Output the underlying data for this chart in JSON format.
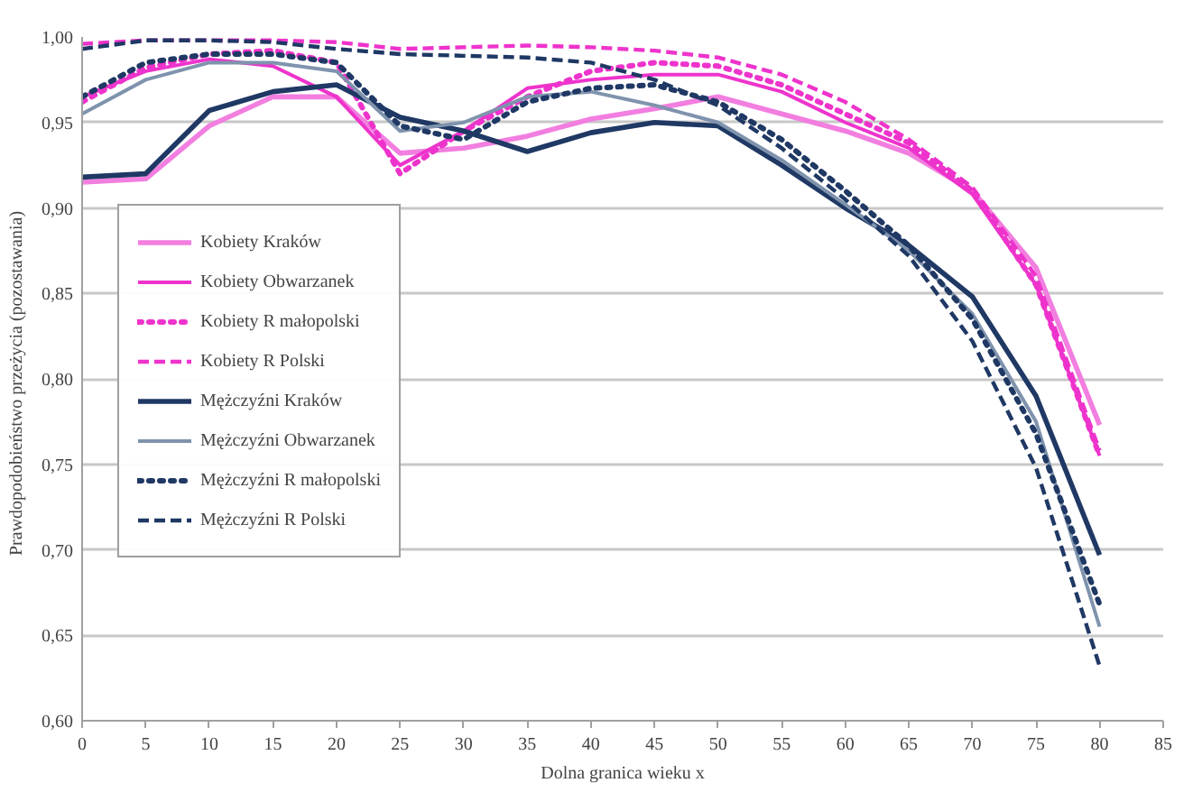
{
  "chart_data": {
    "type": "line",
    "xlabel": "Dolna granica wieku x",
    "ylabel": "Prawdopodobieństwo  przeżycia  (pozostawania)",
    "x": [
      0,
      5,
      10,
      15,
      20,
      25,
      30,
      35,
      40,
      45,
      50,
      55,
      60,
      65,
      70,
      75,
      80
    ],
    "xlim": [
      0,
      85
    ],
    "xticks": [
      0,
      5,
      10,
      15,
      20,
      25,
      30,
      35,
      40,
      45,
      50,
      55,
      60,
      65,
      70,
      75,
      80,
      85
    ],
    "ylim": [
      0.6,
      1.0
    ],
    "yticks": [
      {
        "value": 0.6,
        "label": "0,60"
      },
      {
        "value": 0.65,
        "label": "0,65"
      },
      {
        "value": 0.7,
        "label": "0,70"
      },
      {
        "value": 0.75,
        "label": "0,75"
      },
      {
        "value": 0.8,
        "label": "0,80"
      },
      {
        "value": 0.85,
        "label": "0,85"
      },
      {
        "value": 0.9,
        "label": "0,90"
      },
      {
        "value": 0.95,
        "label": "0,95"
      },
      {
        "value": 1.0,
        "label": "1,00"
      }
    ],
    "grid": "y",
    "legend": "left",
    "series": [
      {
        "name": "Kobiety Kraków",
        "color": "#f27ee0",
        "line_style": "solid",
        "values": [
          0.915,
          0.917,
          0.948,
          0.965,
          0.965,
          0.932,
          0.935,
          0.942,
          0.952,
          0.958,
          0.965,
          0.955,
          0.945,
          0.932,
          0.91,
          0.865,
          0.773
        ]
      },
      {
        "name": "Kobiety Obwarzanek",
        "color": "#ee33cc",
        "line_style": "solid",
        "values": [
          0.965,
          0.98,
          0.987,
          0.983,
          0.965,
          0.925,
          0.945,
          0.97,
          0.975,
          0.978,
          0.978,
          0.968,
          0.95,
          0.935,
          0.908,
          0.855,
          0.755
        ]
      },
      {
        "name": "Kobiety R małopolski",
        "color": "#ee33cc",
        "line_style": "dotted",
        "values": [
          0.962,
          0.982,
          0.99,
          0.992,
          0.985,
          0.92,
          0.945,
          0.965,
          0.98,
          0.985,
          0.983,
          0.972,
          0.955,
          0.938,
          0.91,
          0.855,
          0.755
        ]
      },
      {
        "name": "Kobiety R Polski",
        "color": "#ee33cc",
        "line_style": "dashed",
        "values": [
          0.996,
          0.998,
          0.998,
          0.998,
          0.997,
          0.993,
          0.994,
          0.995,
          0.994,
          0.992,
          0.988,
          0.978,
          0.962,
          0.94,
          0.912,
          0.86,
          0.758
        ]
      },
      {
        "name": "Mężczyźni Kraków",
        "color": "#1f3864",
        "line_style": "solid",
        "values": [
          0.918,
          0.92,
          0.957,
          0.968,
          0.972,
          0.953,
          0.945,
          0.933,
          0.944,
          0.95,
          0.948,
          0.925,
          0.9,
          0.878,
          0.848,
          0.79,
          0.697
        ]
      },
      {
        "name": "Mężczyźni Obwarzanek",
        "color": "#7f93ad",
        "line_style": "solid",
        "values": [
          0.955,
          0.975,
          0.985,
          0.985,
          0.98,
          0.945,
          0.95,
          0.965,
          0.968,
          0.96,
          0.95,
          0.928,
          0.902,
          0.875,
          0.838,
          0.775,
          0.655
        ]
      },
      {
        "name": "Mężczyźni R małopolski",
        "color": "#1f3864",
        "line_style": "dotted",
        "values": [
          0.965,
          0.985,
          0.99,
          0.99,
          0.985,
          0.948,
          0.94,
          0.962,
          0.97,
          0.972,
          0.962,
          0.94,
          0.91,
          0.878,
          0.835,
          0.768,
          0.668
        ]
      },
      {
        "name": "Mężczyźni R Polski",
        "color": "#1f3864",
        "line_style": "dashed",
        "values": [
          0.993,
          0.998,
          0.998,
          0.997,
          0.993,
          0.99,
          0.989,
          0.988,
          0.985,
          0.975,
          0.96,
          0.935,
          0.905,
          0.872,
          0.822,
          0.748,
          0.632
        ]
      }
    ]
  }
}
